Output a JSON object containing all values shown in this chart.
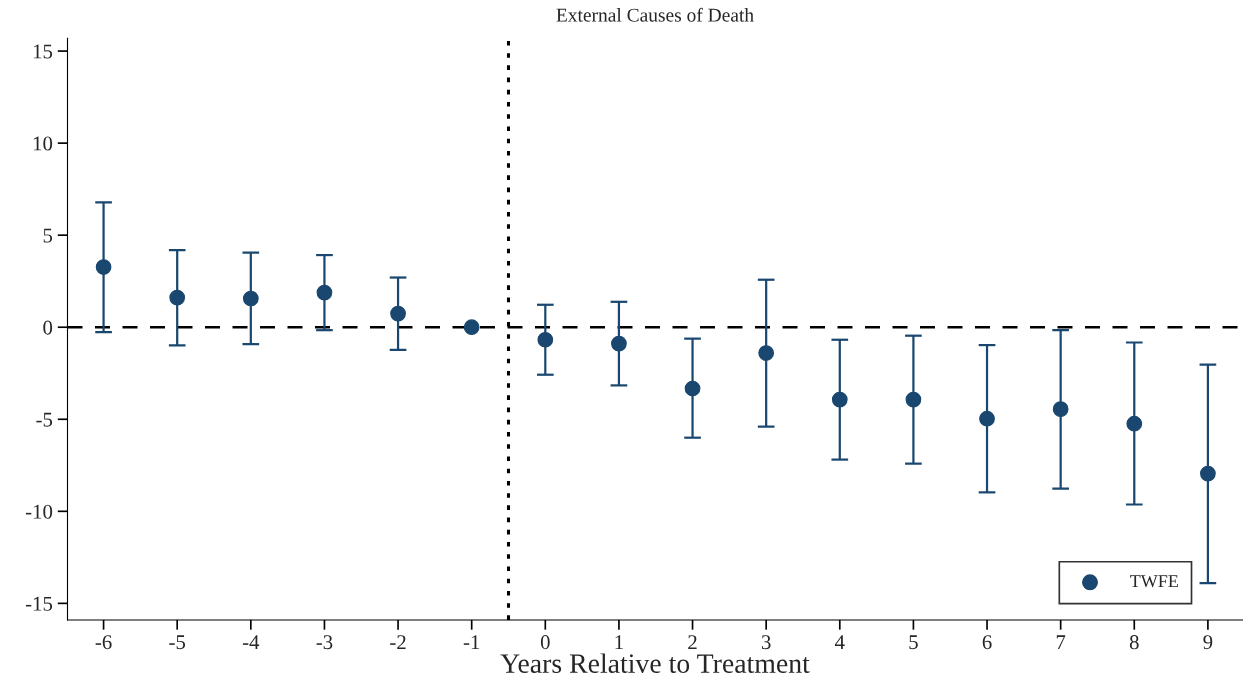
{
  "chart_data": {
    "type": "scatter",
    "title": "External Causes of Death",
    "xlabel": "Years Relative to Treatment",
    "x": [
      -6,
      -5,
      -4,
      -3,
      -2,
      -1,
      0,
      1,
      2,
      3,
      4,
      5,
      6,
      7,
      8,
      9
    ],
    "series": [
      {
        "name": "TWFE",
        "color": "#1a476f",
        "values": [
          3.27,
          1.61,
          1.56,
          1.88,
          0.74,
          0,
          -0.68,
          -0.89,
          -3.33,
          -1.4,
          -3.93,
          -3.93,
          -4.97,
          -4.45,
          -5.24,
          -7.95
        ],
        "errors": [
          [
            -0.27,
            6.78
          ],
          [
            -0.98,
            4.19
          ],
          [
            -0.92,
            4.05
          ],
          [
            -0.16,
            3.92
          ],
          [
            -1.23,
            2.7
          ],
          null,
          [
            -2.58,
            1.22
          ],
          [
            -3.16,
            1.38
          ],
          [
            -6.0,
            -0.62
          ],
          [
            -5.4,
            2.58
          ],
          [
            -7.19,
            -0.68
          ],
          [
            -7.41,
            -0.46
          ],
          [
            -8.97,
            -0.97
          ],
          [
            -8.77,
            -0.16
          ],
          [
            -9.63,
            -0.83
          ],
          [
            -13.9,
            -2.03
          ]
        ]
      }
    ],
    "xlim": [
      -6.49,
      9.47
    ],
    "ylim": [
      -15.9,
      15.7
    ],
    "xticks": [
      -6,
      -5,
      -4,
      -3,
      -2,
      -1,
      0,
      1,
      2,
      3,
      4,
      5,
      6,
      7,
      8,
      9
    ],
    "yticks": [
      -15,
      -10,
      -5,
      0,
      5,
      10,
      15
    ],
    "ref_lines": [
      {
        "axis": "y",
        "value": 0,
        "color": "#000000",
        "line_style": "dashed"
      },
      {
        "axis": "x",
        "value": -0.5,
        "color": "#000000",
        "line_style": "dotted"
      }
    ],
    "marker": "circle",
    "grid": false,
    "legend": "bottom right"
  }
}
